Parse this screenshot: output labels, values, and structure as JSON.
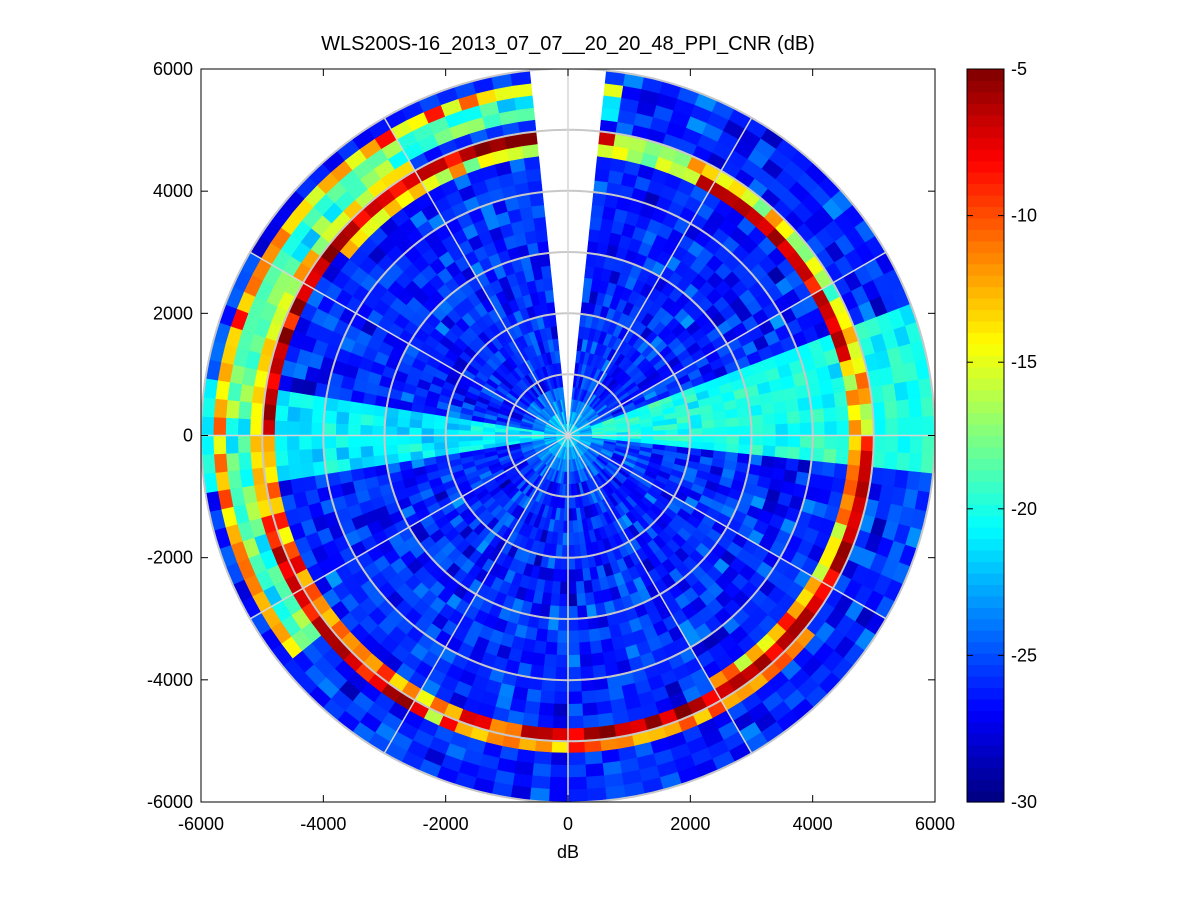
{
  "chart_data": {
    "type": "heatmap",
    "subtype": "polar-ppi",
    "title": "WLS200S-16_2013_07_07__20_20_48_PPI_CNR (dB)",
    "xlabel": "dB",
    "ylabel": "",
    "xlim": [
      -6000,
      6000
    ],
    "ylim": [
      -6000,
      6000
    ],
    "x_ticks": [
      -6000,
      -4000,
      -2000,
      0,
      2000,
      4000,
      6000
    ],
    "y_ticks": [
      -6000,
      -4000,
      -2000,
      0,
      2000,
      4000,
      6000
    ],
    "x_tick_labels": [
      "-6000",
      "-4000",
      "-2000",
      "0",
      "2000",
      "4000",
      "6000"
    ],
    "y_tick_labels": [
      "-6000",
      "-4000",
      "-2000",
      "0",
      "2000",
      "4000",
      "6000"
    ],
    "range_rings": [
      1000,
      2000,
      3000,
      4000,
      5000,
      6000
    ],
    "spoke_angles_deg": [
      0,
      30,
      60,
      90,
      120,
      150,
      180,
      210,
      240,
      270,
      300,
      330
    ],
    "max_range": 6000,
    "scan_gap_deg": [
      355,
      5
    ],
    "colormap": "jet",
    "colorbar": {
      "clim": [
        -30,
        -5
      ],
      "ticks": [
        -5,
        -10,
        -15,
        -20,
        -25,
        -30
      ],
      "tick_labels": [
        "-5",
        "-10",
        "-15",
        "-20",
        "-25",
        "-30"
      ]
    },
    "features": [
      {
        "name": "background",
        "value_db": -26
      },
      {
        "name": "near-range cyan core",
        "range": [
          0,
          900
        ],
        "value_db": -21
      },
      {
        "name": "high CNR ring",
        "range": [
          4700,
          5100
        ],
        "value_db": -6
      },
      {
        "name": "outer ring north-west",
        "range": [
          5500,
          5900
        ],
        "value_db": -10
      },
      {
        "name": "bright sector east",
        "azimuth_deg": [
          70,
          95
        ],
        "value_db": -20
      },
      {
        "name": "bright sector west",
        "azimuth_deg": [
          262,
          280
        ],
        "value_db": -21
      }
    ],
    "grid": true,
    "legend": "none"
  }
}
